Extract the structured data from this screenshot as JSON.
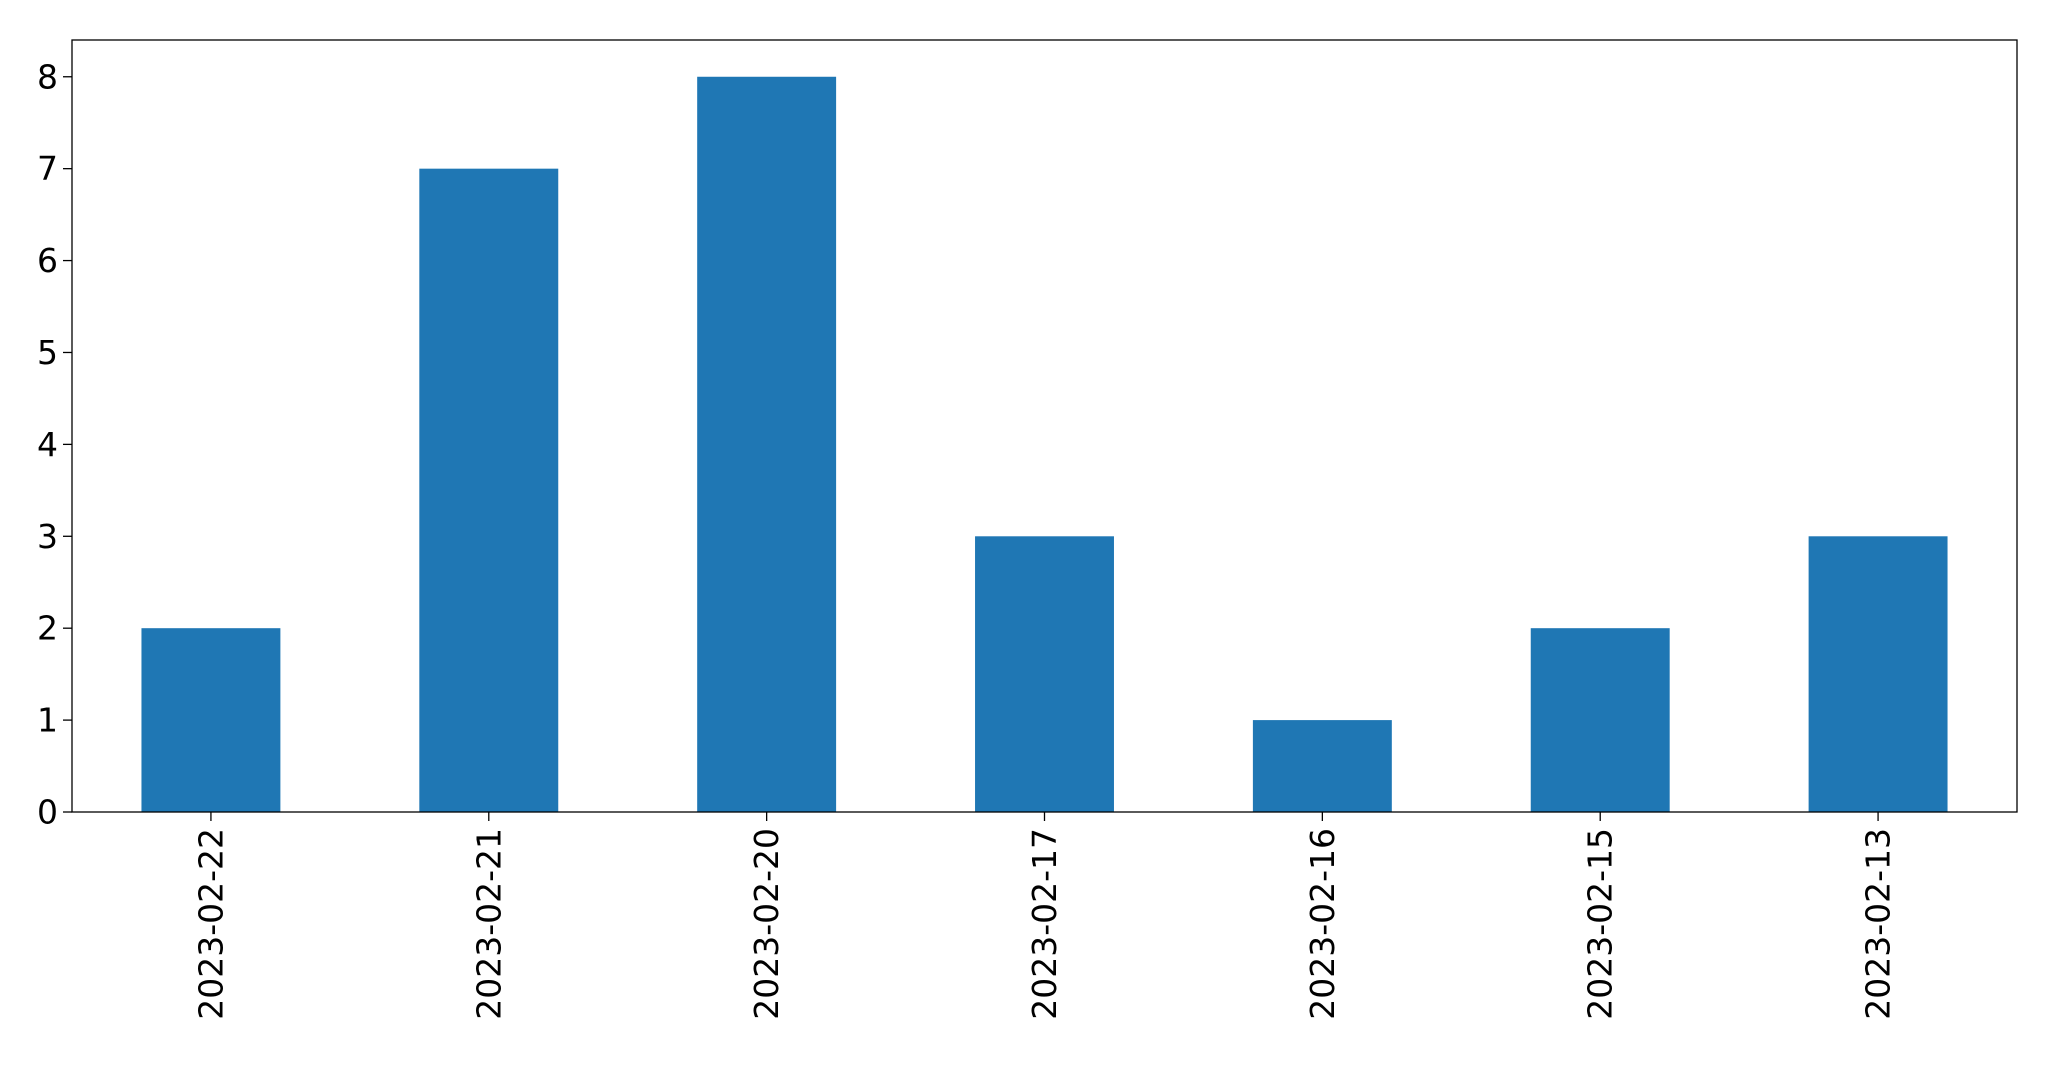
{
  "chart_data": {
    "type": "bar",
    "title": "",
    "xlabel": "",
    "ylabel": "",
    "categories": [
      "2023-02-22",
      "2023-02-21",
      "2023-02-20",
      "2023-02-17",
      "2023-02-16",
      "2023-02-15",
      "2023-02-13"
    ],
    "values": [
      2,
      7,
      8,
      3,
      1,
      2,
      3
    ],
    "ylim": [
      0,
      8.4
    ],
    "yticks": [
      0,
      1,
      2,
      3,
      4,
      5,
      6,
      7,
      8
    ],
    "bar_color": "#1f77b4",
    "grid": false,
    "legend": "none",
    "x_tick_rotation": "vertical"
  }
}
